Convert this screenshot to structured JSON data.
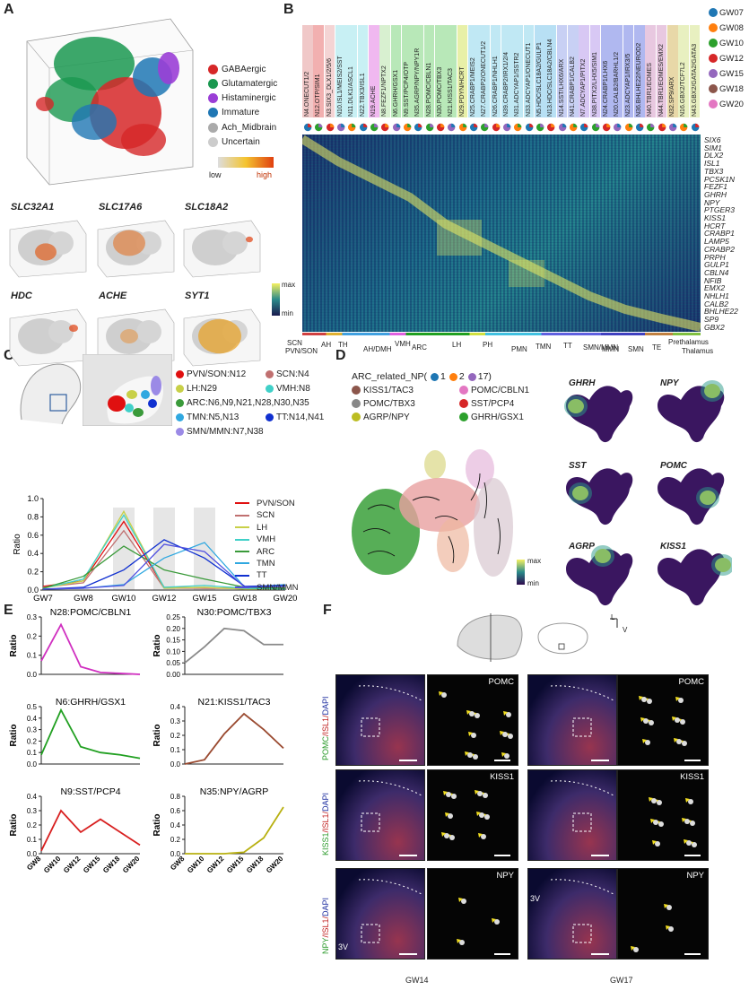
{
  "panels": {
    "A": "A",
    "B": "B",
    "C": "C",
    "D": "D",
    "E": "E",
    "F": "F"
  },
  "panelA": {
    "legend": [
      {
        "label": "GABAergic",
        "color": "#d62728"
      },
      {
        "label": "Glutamatergic",
        "color": "#1a9850"
      },
      {
        "label": "Histaminergic",
        "color": "#9a3ed6"
      },
      {
        "label": "Immature",
        "color": "#1f77b4"
      },
      {
        "label": "Ach_Midbrain",
        "color": "#aaaaaa"
      },
      {
        "label": "Uncertain",
        "color": "#cccccc"
      }
    ],
    "scale_low": "low",
    "scale_high": "high",
    "genes": [
      "SLC32A1",
      "SLC17A6",
      "SLC18A2",
      "HDC",
      "ACHE",
      "SYT1"
    ]
  },
  "panelB": {
    "clusters": [
      "N4.ONECUT1/2",
      "N12.OTP/SIM1",
      "N3.SIX3_DLX1/2/5/6",
      "N10.ISL1/MEIS2/SST",
      "N11.DLK1/ASCL1",
      "N22.TBX3/ISL1",
      "N19.ACHE",
      "N8.FEZF1/NPTX2",
      "N6.GHRH/GSX1",
      "N9.SST/PCP4/OTP",
      "N35.AGRP/NPY/NPY1R",
      "N28.POMC/CBLN1",
      "N30.POMC/TBX3",
      "N21.KISS1/TAC3",
      "N29.PDYN/HCRT",
      "N25.CRABP1/MEIS2",
      "N27.CRABP2/ONECUT1/2",
      "N26.CRABP1/NHLH1",
      "N39.CRABP2/IRX1/2/4",
      "N31.ADCYAP1/SSTR2",
      "N33.ADCYAP1/ONECUT1",
      "N5.HDC/SLC18A2/GULP1",
      "N13.HDC/SLC18A2/CBLN4",
      "N14.SST/LHX6/ARX",
      "N41.CRABP1/CALB2",
      "N7.ADCYAP1/PITX2",
      "N38.PITX2/LHX5/SIM1",
      "N24.CRABP1/LHX6",
      "N20.CALB2/BARHL1/2",
      "N23.ADCYAP1/IRX3/5",
      "N36.BHLHE22/NEUROD2",
      "N40.TBR1/EOMES",
      "N44.TBR1/EOMES/EMX2",
      "N32.SP9/ARX",
      "N16.GBX2/TCF7L2",
      "N43.GBX2/GATA2/GATA3"
    ],
    "gw_legend": [
      {
        "label": "GW07",
        "color": "#1f77b4"
      },
      {
        "label": "GW08",
        "color": "#ff7f0e"
      },
      {
        "label": "GW10",
        "color": "#2ca02c"
      },
      {
        "label": "GW12",
        "color": "#d62728"
      },
      {
        "label": "GW15",
        "color": "#9467bd"
      },
      {
        "label": "GW18",
        "color": "#8c564b"
      },
      {
        "label": "GW20",
        "color": "#e377c2"
      }
    ],
    "genes": [
      "SIX6",
      "SIM1",
      "DLX2",
      "ISL1",
      "TBX3",
      "PCSK1N",
      "FEZF1",
      "GHRH",
      "NPY",
      "PTGER3",
      "KISS1",
      "HCRT",
      "CRABP1",
      "LAMP5",
      "CRABP2",
      "PRPH",
      "GULP1",
      "CBLN4",
      "NFIB",
      "EMX2",
      "NHLH1",
      "CALB2",
      "BHLHE22",
      "SP9",
      "GBX2"
    ],
    "scale_max": "max",
    "scale_min": "min",
    "regions": [
      "SCN",
      "PVN/SON",
      "AH",
      "TH",
      "AH/DMH",
      "VMH",
      "ARC",
      "LH",
      "PH",
      "PMN",
      "TMN",
      "TT",
      "SMN/MMN",
      "MMN",
      "SMN",
      "TE",
      "Prethalamus",
      "Thalamus"
    ]
  },
  "panelC": {
    "legend": [
      {
        "label": "PVN/SON:N12",
        "color": "#e01010"
      },
      {
        "label": "SCN:N4",
        "color": "#c07070"
      },
      {
        "label": "LH:N29",
        "color": "#c8d048"
      },
      {
        "label": "VMH:N8",
        "color": "#40d0c8"
      },
      {
        "label": "ARC:N6,N9,N21,N28,N30,N35",
        "color": "#3a9a3a"
      },
      {
        "label": "TT:N14,N41",
        "color": "#1030d0"
      },
      {
        "label": "TMN:N5,N13",
        "color": "#30a8e0"
      },
      {
        "label": "SMN/MMN:N7,N38",
        "color": "#9b8ae6"
      }
    ],
    "chart_data": {
      "type": "line",
      "x": [
        "GW7",
        "GW8",
        "GW10",
        "GW12",
        "GW15",
        "GW18",
        "GW20"
      ],
      "ylabel": "Ratio",
      "ylim": [
        0,
        1.0
      ],
      "yticks": [
        "0.0",
        "0.2",
        "0.4",
        "0.6",
        "0.8",
        "1.0"
      ],
      "series": [
        {
          "name": "PVN/SON",
          "color": "#e01010",
          "values": [
            0.04,
            0.1,
            0.75,
            0.03,
            0.02,
            0.02,
            0.02
          ]
        },
        {
          "name": "SCN",
          "color": "#c07070",
          "values": [
            0.03,
            0.08,
            0.65,
            0.02,
            0.02,
            0.02,
            0.02
          ]
        },
        {
          "name": "LH",
          "color": "#c8d048",
          "values": [
            0.02,
            0.1,
            0.86,
            0.02,
            0.03,
            0.01,
            0.01
          ]
        },
        {
          "name": "VMH",
          "color": "#40d0c8",
          "values": [
            0.02,
            0.12,
            0.82,
            0.03,
            0.05,
            0.02,
            0.01
          ]
        },
        {
          "name": "ARC",
          "color": "#3a9a3a",
          "values": [
            0.02,
            0.15,
            0.48,
            0.22,
            0.12,
            0.03,
            0.02
          ]
        },
        {
          "name": "TMN",
          "color": "#30a8e0",
          "values": [
            0.01,
            0.02,
            0.06,
            0.35,
            0.52,
            0.03,
            0.06
          ]
        },
        {
          "name": "TT",
          "color": "#1030d0",
          "values": [
            0.01,
            0.03,
            0.22,
            0.55,
            0.35,
            0.04,
            0.05
          ]
        },
        {
          "name": "SMN/MMN",
          "color": "#5050e0",
          "values": [
            0.01,
            0.02,
            0.05,
            0.5,
            0.42,
            0.03,
            0.04
          ]
        }
      ]
    }
  },
  "panelD": {
    "title": "ARC_related_NP(",
    "counts": [
      {
        "label": "1",
        "color": "#1f77b4"
      },
      {
        "label": "2",
        "color": "#ff7f0e"
      },
      {
        "label": "17)",
        "color": "#9467bd"
      }
    ],
    "legend": [
      {
        "label": "KISS1/TAC3",
        "color": "#8c564b"
      },
      {
        "label": "POMC/CBLN1",
        "color": "#e377c2"
      },
      {
        "label": "POMC/TBX3",
        "color": "#888888"
      },
      {
        "label": "SST/PCP4",
        "color": "#d62728"
      },
      {
        "label": "AGRP/NPY",
        "color": "#bcbd22"
      },
      {
        "label": "GHRH/GSX1",
        "color": "#2ca02c"
      }
    ],
    "genes": [
      "GHRH",
      "NPY",
      "SST",
      "POMC",
      "AGRP",
      "KISS1"
    ],
    "scale_max": "max",
    "scale_min": "min"
  },
  "panelE": {
    "chart_data": [
      {
        "type": "line",
        "title": "N28:POMC/CBLN1",
        "color": "#d030c0",
        "ylabel": "Ratio",
        "ylim": [
          0,
          0.3
        ],
        "yticks": [
          "0.0",
          "0.1",
          "0.2",
          "0.3"
        ],
        "x": [
          "GW8",
          "GW10",
          "GW12",
          "GW15",
          "GW18",
          "GW20"
        ],
        "values": [
          0.07,
          0.26,
          0.04,
          0.01,
          0.005,
          0.0
        ]
      },
      {
        "type": "line",
        "title": "N30:POMC/TBX3",
        "color": "#8a8a8a",
        "ylabel": "Ratio",
        "ylim": [
          0,
          0.25
        ],
        "yticks": [
          "0.00",
          "0.05",
          "0.10",
          "0.15",
          "0.20",
          "0.25"
        ],
        "x": [
          "GW8",
          "GW10",
          "GW12",
          "GW15",
          "GW18",
          "GW20"
        ],
        "values": [
          0.05,
          0.12,
          0.2,
          0.19,
          0.13,
          0.13
        ]
      },
      {
        "type": "line",
        "title": "N6:GHRH/GSX1",
        "color": "#22a022",
        "ylabel": "Ratio",
        "ylim": [
          0,
          0.5
        ],
        "yticks": [
          "0.0",
          "0.1",
          "0.2",
          "0.3",
          "0.4",
          "0.5"
        ],
        "x": [
          "GW8",
          "GW10",
          "GW12",
          "GW15",
          "GW18",
          "GW20"
        ],
        "values": [
          0.08,
          0.47,
          0.15,
          0.1,
          0.08,
          0.05
        ]
      },
      {
        "type": "line",
        "title": "N21:KISS1/TAC3",
        "color": "#9a4a30",
        "ylabel": "Ratio",
        "ylim": [
          0,
          0.4
        ],
        "yticks": [
          "0.0",
          "0.1",
          "0.2",
          "0.3",
          "0.4"
        ],
        "x": [
          "GW8",
          "GW10",
          "GW12",
          "GW15",
          "GW18",
          "GW20"
        ],
        "values": [
          0.0,
          0.03,
          0.21,
          0.35,
          0.24,
          0.11
        ]
      },
      {
        "type": "line",
        "title": "N9:SST/PCP4",
        "color": "#d82020",
        "ylabel": "Ratio",
        "ylim": [
          0,
          0.4
        ],
        "yticks": [
          "0.0",
          "0.1",
          "0.2",
          "0.3",
          "0.4"
        ],
        "x": [
          "GW8",
          "GW10",
          "GW12",
          "GW15",
          "GW18",
          "GW20"
        ],
        "values": [
          0.02,
          0.3,
          0.15,
          0.24,
          0.15,
          0.06
        ]
      },
      {
        "type": "line",
        "title": "N35:NPY/AGRP",
        "color": "#b8b010",
        "ylabel": "Ratio",
        "ylim": [
          0,
          0.8
        ],
        "yticks": [
          "0.0",
          "0.2",
          "0.4",
          "0.6",
          "0.8"
        ],
        "x": [
          "GW8",
          "GW10",
          "GW12",
          "GW15",
          "GW18",
          "GW20"
        ],
        "values": [
          0.0,
          0.0,
          0.0,
          0.02,
          0.22,
          0.65
        ]
      }
    ]
  },
  "panelF": {
    "stains": [
      {
        "green": "POMC",
        "red": "/ISL1/",
        "blue": "DAPI",
        "zoom": "POMC"
      },
      {
        "green": "KISS1",
        "red": "/ISL1/",
        "blue": "DAPI",
        "zoom": "KISS1"
      },
      {
        "green": "NPY",
        "red": "/ISL1/",
        "blue": "DAPI",
        "zoom": "NPY"
      }
    ],
    "label_3v": "3V",
    "axis_l": "L",
    "axis_v": "V",
    "ages": [
      "GW14",
      "GW17"
    ]
  }
}
